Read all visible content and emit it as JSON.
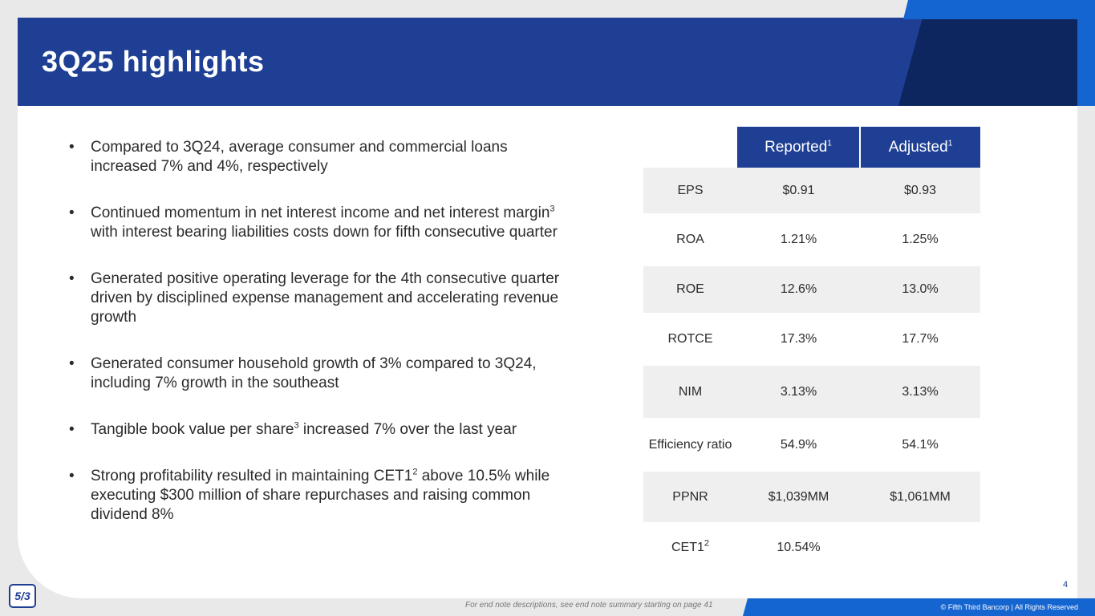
{
  "slide": {
    "title": "3Q25 highlights",
    "page_number": "4",
    "footnote": "For end note descriptions, see end note summary starting on page 41",
    "copyright": "© Fifth Third Bancorp | All Rights Reserved",
    "logo_text": "5/3"
  },
  "bullets": [
    {
      "pre": "Compared to 3Q24, average consumer and commercial loans increased 7% and 4%, respectively",
      "sup": "",
      "post": ""
    },
    {
      "pre": "Continued momentum in net interest income and net interest margin",
      "sup": "3",
      "post": " with interest bearing liabilities costs down for fifth consecutive quarter"
    },
    {
      "pre": "Generated positive operating leverage for the 4th consecutive quarter driven by disciplined expense management and accelerating revenue growth",
      "sup": "",
      "post": ""
    },
    {
      "pre": "Generated consumer household growth of 3% compared to 3Q24, including 7% growth in the southeast",
      "sup": "",
      "post": ""
    },
    {
      "pre": "Tangible book value per share",
      "sup": "3",
      "post": " increased 7% over the last year"
    },
    {
      "pre": "Strong profitability resulted in maintaining CET1",
      "sup": "2",
      "post": " above 10.5% while executing $300 million of share repurchases and raising common dividend 8%"
    }
  ],
  "table": {
    "headers": [
      {
        "label": "Reported",
        "sup": "1"
      },
      {
        "label": "Adjusted",
        "sup": "1"
      }
    ],
    "rows": [
      {
        "metric": "EPS",
        "sup": "",
        "reported": "$0.91",
        "adjusted": "$0.93"
      },
      {
        "metric": "ROA",
        "sup": "",
        "reported": "1.21%",
        "adjusted": "1.25%"
      },
      {
        "metric": "ROE",
        "sup": "",
        "reported": "12.6%",
        "adjusted": "13.0%"
      },
      {
        "metric": "ROTCE",
        "sup": "",
        "reported": "17.3%",
        "adjusted": "17.7%"
      },
      {
        "metric": "NIM",
        "sup": "",
        "reported": "3.13%",
        "adjusted": "3.13%"
      },
      {
        "metric": "Efficiency ratio",
        "sup": "",
        "reported": "54.9%",
        "adjusted": "54.1%"
      },
      {
        "metric": "PPNR",
        "sup": "",
        "reported": "$1,039MM",
        "adjusted": "$1,061MM"
      },
      {
        "metric": "CET1",
        "sup": "2",
        "reported": "10.54%",
        "adjusted": ""
      }
    ]
  },
  "colors": {
    "header_blue": "#1e3f94",
    "header_dark": "#0d2660",
    "accent_blue": "#1565d0",
    "row_shade": "#efefef"
  }
}
